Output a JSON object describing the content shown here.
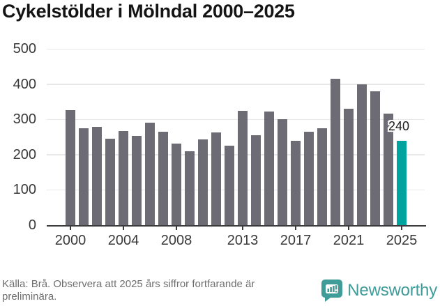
{
  "title": "Cykelstölder i Mölndal 2000–2025",
  "chart_data": {
    "type": "bar",
    "title": "Cykelstölder i Mölndal 2000–2025",
    "xlabel": "",
    "ylabel": "",
    "x": [
      2000,
      2001,
      2002,
      2003,
      2004,
      2005,
      2006,
      2007,
      2008,
      2009,
      2010,
      2011,
      2012,
      2013,
      2014,
      2015,
      2016,
      2017,
      2018,
      2019,
      2020,
      2021,
      2022,
      2023,
      2024,
      2025
    ],
    "values": [
      326,
      274,
      279,
      246,
      266,
      252,
      290,
      265,
      231,
      210,
      243,
      263,
      225,
      324,
      255,
      322,
      300,
      239,
      265,
      275,
      415,
      330,
      399,
      380,
      316,
      240
    ],
    "highlight_index": 25,
    "annotation": {
      "index": 25,
      "label": "240"
    },
    "x_tick_labels": [
      "2000",
      "2004",
      "2008",
      "2013",
      "2017",
      "2021",
      "2025"
    ],
    "y_ticks": [
      0,
      100,
      200,
      300,
      400,
      500
    ],
    "ylim": [
      0,
      500
    ],
    "grid": "horizontal",
    "legend": "none",
    "colors": {
      "bar": "#6d6c75",
      "highlight": "#00a39d"
    }
  },
  "footer": {
    "source": "Källa: Brå. Observera att 2025 års siffror fortfarande är\npreliminära.",
    "brand": "Newsworthy"
  },
  "colors": {
    "brand": "#3f9c99",
    "axis_text": "#3a3a3a",
    "title_text": "#141414"
  }
}
